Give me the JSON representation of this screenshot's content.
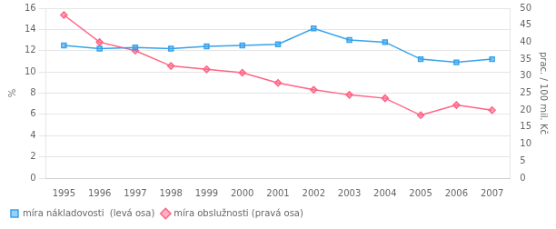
{
  "chart_data": {
    "type": "line",
    "x": [
      1995,
      1996,
      1997,
      1998,
      1999,
      2000,
      2001,
      2002,
      2003,
      2004,
      2005,
      2006,
      2007
    ],
    "series": [
      {
        "name": "míra nákladovosti  (levá osa)",
        "marker": "square",
        "values": [
          12.5,
          12.2,
          12.3,
          12.2,
          12.4,
          12.5,
          12.6,
          14.1,
          13.0,
          12.8,
          11.2,
          10.9,
          11.2
        ]
      },
      {
        "name": "míra obslužnosti (pravá osa)",
        "marker": "diamond",
        "axis": "y2",
        "values": [
          48.0,
          40.0,
          37.5,
          33.0,
          32.0,
          31.0,
          28.0,
          26.0,
          24.5,
          23.5,
          18.5,
          21.5,
          20.0
        ]
      }
    ],
    "ylabel": "%",
    "y2label": "prac. / 100 mil. Kč",
    "xlim": [
      1994.5,
      2007.5
    ],
    "xticks": [
      1995,
      1996,
      1997,
      1998,
      1999,
      2000,
      2001,
      2002,
      2003,
      2004,
      2005,
      2006,
      2007
    ],
    "ylim": [
      0,
      16
    ],
    "yticks": [
      0,
      2,
      4,
      6,
      8,
      10,
      12,
      14,
      16
    ],
    "y2lim": [
      0,
      50
    ],
    "y2ticks": [
      0,
      5,
      10,
      15,
      20,
      25,
      30,
      35,
      40,
      45,
      50
    ],
    "grid": true,
    "legend": "lower left"
  }
}
